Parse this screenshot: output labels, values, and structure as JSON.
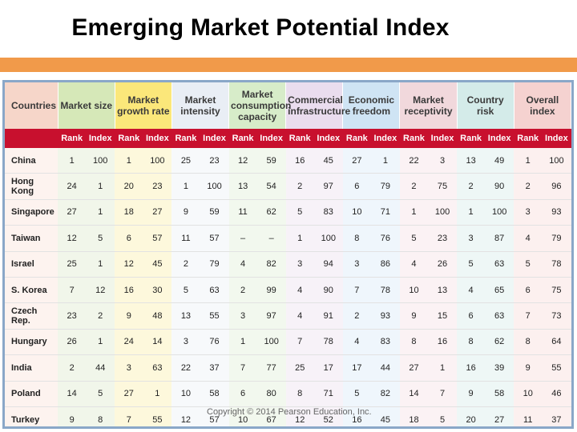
{
  "title": "Emerging Market Potential Index",
  "headers": [
    "Countries",
    "Market size",
    "Market growth rate",
    "Market intensity",
    "Market consumption capacity",
    "Commercial infrastructure",
    "Economic freedom",
    "Market receptivity",
    "Country risk",
    "Overall index"
  ],
  "sub_rank": "Rank",
  "sub_index": "Index",
  "rows": [
    {
      "country": "China",
      "vals": [
        "1",
        "100",
        "1",
        "100",
        "25",
        "23",
        "12",
        "59",
        "16",
        "45",
        "27",
        "1",
        "22",
        "3",
        "13",
        "49",
        "1",
        "100"
      ]
    },
    {
      "country": "Hong Kong",
      "vals": [
        "24",
        "1",
        "20",
        "23",
        "1",
        "100",
        "13",
        "54",
        "2",
        "97",
        "6",
        "79",
        "2",
        "75",
        "2",
        "90",
        "2",
        "96"
      ]
    },
    {
      "country": "Singapore",
      "vals": [
        "27",
        "1",
        "18",
        "27",
        "9",
        "59",
        "11",
        "62",
        "5",
        "83",
        "10",
        "71",
        "1",
        "100",
        "1",
        "100",
        "3",
        "93"
      ]
    },
    {
      "country": "Taiwan",
      "vals": [
        "12",
        "5",
        "6",
        "57",
        "11",
        "57",
        "–",
        "–",
        "1",
        "100",
        "8",
        "76",
        "5",
        "23",
        "3",
        "87",
        "4",
        "79"
      ]
    },
    {
      "country": "Israel",
      "vals": [
        "25",
        "1",
        "12",
        "45",
        "2",
        "79",
        "4",
        "82",
        "3",
        "94",
        "3",
        "86",
        "4",
        "26",
        "5",
        "63",
        "5",
        "78"
      ]
    },
    {
      "country": "S. Korea",
      "vals": [
        "7",
        "12",
        "16",
        "30",
        "5",
        "63",
        "2",
        "99",
        "4",
        "90",
        "7",
        "78",
        "10",
        "13",
        "4",
        "65",
        "6",
        "75"
      ]
    },
    {
      "country": "Czech Rep.",
      "vals": [
        "23",
        "2",
        "9",
        "48",
        "13",
        "55",
        "3",
        "97",
        "4",
        "91",
        "2",
        "93",
        "9",
        "15",
        "6",
        "63",
        "7",
        "73"
      ]
    },
    {
      "country": "Hungary",
      "vals": [
        "26",
        "1",
        "24",
        "14",
        "3",
        "76",
        "1",
        "100",
        "7",
        "78",
        "4",
        "83",
        "8",
        "16",
        "8",
        "62",
        "8",
        "64"
      ]
    },
    {
      "country": "India",
      "vals": [
        "2",
        "44",
        "3",
        "63",
        "22",
        "37",
        "7",
        "77",
        "25",
        "17",
        "17",
        "44",
        "27",
        "1",
        "16",
        "39",
        "9",
        "55"
      ]
    },
    {
      "country": "Poland",
      "vals": [
        "14",
        "5",
        "27",
        "1",
        "10",
        "58",
        "6",
        "80",
        "8",
        "71",
        "5",
        "82",
        "14",
        "7",
        "9",
        "58",
        "10",
        "46"
      ]
    },
    {
      "country": "Turkey",
      "vals": [
        "9",
        "8",
        "7",
        "55",
        "12",
        "57",
        "10",
        "67",
        "12",
        "52",
        "16",
        "45",
        "18",
        "5",
        "20",
        "27",
        "11",
        "37"
      ]
    }
  ],
  "copyright": "Copyright © 2014 Pearson Education, Inc."
}
